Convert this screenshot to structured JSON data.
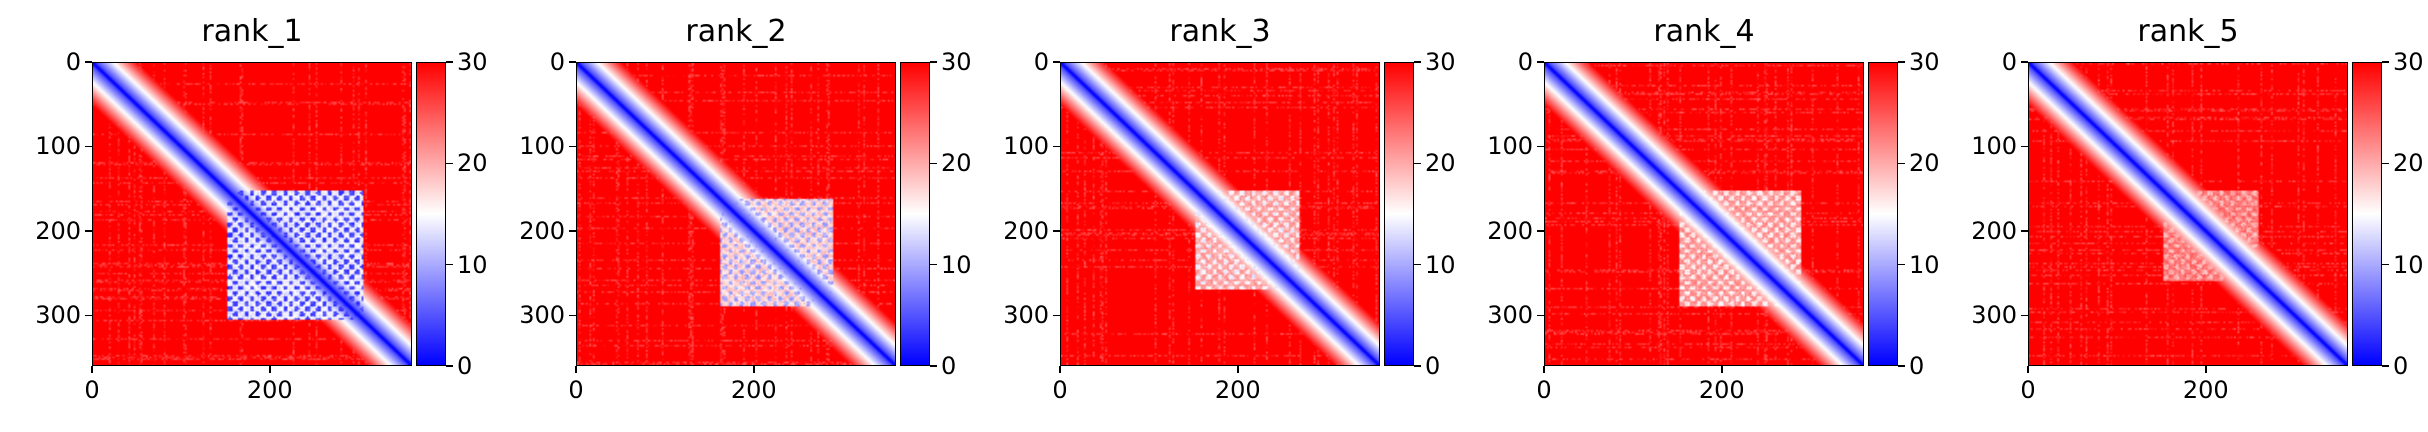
{
  "chart_data": [
    {
      "type": "heatmap",
      "title": "rank_1",
      "matrix_size": 360,
      "x_ticks": [
        0,
        200
      ],
      "y_ticks": [
        0,
        100,
        200,
        300
      ],
      "colorbar": {
        "min": 0,
        "max": 30,
        "ticks": [
          0,
          10,
          20,
          30
        ],
        "colormap": [
          "#0000ff",
          "#ffffff",
          "#ff0000"
        ]
      },
      "blue_block": {
        "from": 150,
        "to": 305,
        "intensity": 1.0
      }
    },
    {
      "type": "heatmap",
      "title": "rank_2",
      "matrix_size": 360,
      "x_ticks": [
        0,
        200
      ],
      "y_ticks": [
        0,
        100,
        200,
        300
      ],
      "colorbar": {
        "min": 0,
        "max": 30,
        "ticks": [
          0,
          10,
          20,
          30
        ],
        "colormap": [
          "#0000ff",
          "#ffffff",
          "#ff0000"
        ]
      },
      "blue_block": {
        "from": 160,
        "to": 290,
        "intensity": 0.75
      }
    },
    {
      "type": "heatmap",
      "title": "rank_3",
      "matrix_size": 360,
      "x_ticks": [
        0,
        200
      ],
      "y_ticks": [
        0,
        100,
        200,
        300
      ],
      "colorbar": {
        "min": 0,
        "max": 30,
        "ticks": [
          0,
          10,
          20,
          30
        ],
        "colormap": [
          "#0000ff",
          "#ffffff",
          "#ff0000"
        ]
      },
      "blue_block": {
        "from": 150,
        "to": 270,
        "intensity": 0.55
      }
    },
    {
      "type": "heatmap",
      "title": "rank_4",
      "matrix_size": 360,
      "x_ticks": [
        0,
        200
      ],
      "y_ticks": [
        0,
        100,
        200,
        300
      ],
      "colorbar": {
        "min": 0,
        "max": 30,
        "ticks": [
          0,
          10,
          20,
          30
        ],
        "colormap": [
          "#0000ff",
          "#ffffff",
          "#ff0000"
        ]
      },
      "blue_block": {
        "from": 150,
        "to": 290,
        "intensity": 0.5
      }
    },
    {
      "type": "heatmap",
      "title": "rank_5",
      "matrix_size": 360,
      "x_ticks": [
        0,
        200
      ],
      "y_ticks": [
        0,
        100,
        200,
        300
      ],
      "colorbar": {
        "min": 0,
        "max": 30,
        "ticks": [
          0,
          10,
          20,
          30
        ],
        "colormap": [
          "#0000ff",
          "#ffffff",
          "#ff0000"
        ]
      },
      "blue_block": {
        "from": 150,
        "to": 260,
        "intensity": 0.35
      }
    }
  ]
}
